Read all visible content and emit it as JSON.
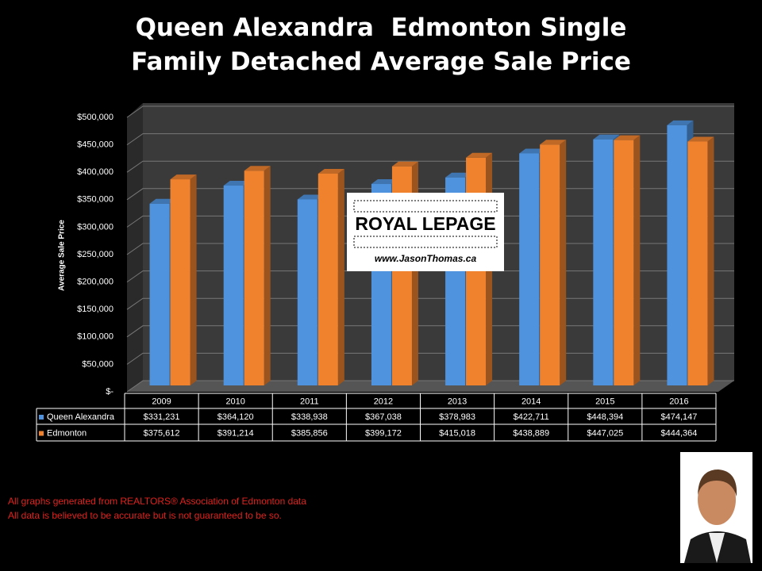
{
  "chart_data": {
    "type": "bar3d",
    "title": "Queen Alexandra  Edmonton Single Family Detached Average Sale Price",
    "ylabel": "Average Sale Price",
    "categories": [
      "2009",
      "2010",
      "2011",
      "2012",
      "2013",
      "2014",
      "2015",
      "2016"
    ],
    "series": [
      {
        "name": "Queen Alexandra",
        "color": "#4f93de",
        "values": [
          331231,
          364120,
          338938,
          367038,
          378983,
          422711,
          448394,
          474147
        ],
        "value_labels": [
          "$331,231",
          "$364,120",
          "$338,938",
          "$367,038",
          "$378,983",
          "$422,711",
          "$448,394",
          "$474,147"
        ]
      },
      {
        "name": "Edmonton",
        "color": "#f0822e",
        "values": [
          375612,
          391214,
          385856,
          399172,
          415018,
          438889,
          447025,
          444364
        ],
        "value_labels": [
          "$375,612",
          "$391,214",
          "$385,856",
          "$399,172",
          "$415,018",
          "$438,889",
          "$447,025",
          "$444,364"
        ]
      }
    ],
    "ylim": [
      0,
      500000
    ],
    "yticks": [
      {
        "value": 0,
        "label": "$-"
      },
      {
        "value": 50000,
        "label": "$50,000"
      },
      {
        "value": 100000,
        "label": "$100,000"
      },
      {
        "value": 150000,
        "label": "$150,000"
      },
      {
        "value": 200000,
        "label": "$200,000"
      },
      {
        "value": 250000,
        "label": "$250,000"
      },
      {
        "value": 300000,
        "label": "$300,000"
      },
      {
        "value": 350000,
        "label": "$350,000"
      },
      {
        "value": 400000,
        "label": "$400,000"
      },
      {
        "value": 450000,
        "label": "$450,000"
      },
      {
        "value": 500000,
        "label": "$500,000"
      }
    ],
    "grid": true
  },
  "logo": {
    "brand": "ROYAL LEPAGE",
    "url": "www.JasonThomas.ca"
  },
  "footnotes": [
    "All graphs generated from REALTORS® Association of Edmonton data",
    "All data is believed to be accurate but is not guaranteed to be so."
  ]
}
